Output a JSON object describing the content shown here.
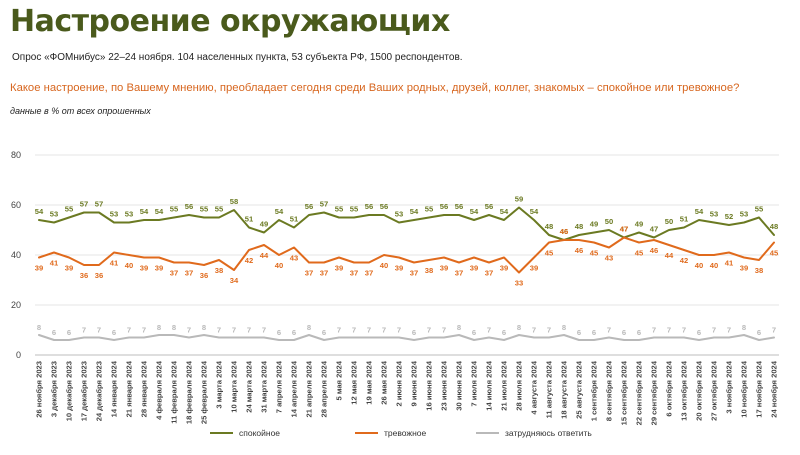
{
  "header": {
    "title": "Настроение окружающих",
    "subtitle": "Опрос «ФОМнибус» 22–24 ноября. 104 населенных пункта, 53 субъекта РФ, 1500 респондентов.",
    "question": "Какое настроение, по Вашему мнению, преобладает сегодня среди Ваших родных, друзей, коллег, знакомых – спокойное или тревожное?",
    "note": "данные в % от всех опрошенных"
  },
  "chart_data": {
    "type": "line",
    "ylim": [
      0,
      80
    ],
    "yticks": [
      0,
      20,
      40,
      60,
      80
    ],
    "grid": true,
    "legend_position": "bottom",
    "categories": [
      "26 ноября 2023",
      "3 декабря 2023",
      "10 декабря 2023",
      "17 декабря 2023",
      "24 декабря 2023",
      "14 января 2024",
      "21 января 2024",
      "28 января 2024",
      "4 февраля 2024",
      "11 февраля 2024",
      "18 февраля 2024",
      "25 февраля 2024",
      "3 марта 2024",
      "10 марта 2024",
      "24 марта 2024",
      "31 марта 2024",
      "7 апреля 2024",
      "14 апреля 2024",
      "21 апреля 2024",
      "28 апреля 2024",
      "5 мая 2024",
      "12 мая 2024",
      "19 мая 2024",
      "26 мая 2024",
      "2 июня 2024",
      "9 июня 2024",
      "16 июня 2024",
      "23 июня 2024",
      "30 июня 2024",
      "7 июля 2024",
      "14 июля 2024",
      "21 июля 2024",
      "28 июля 2024",
      "4 августа 2024",
      "11 августа 2024",
      "18 августа 2024",
      "25 августа 2024",
      "1 сентября 2024",
      "8 сентября 2024",
      "15 сентября 2024",
      "22 сентября 2024",
      "29 сентября 2024",
      "6 октября 2024",
      "13 октября 2024",
      "20 октября 2024",
      "27 октября 2024",
      "3 ноября 2024",
      "10 ноября 2024",
      "17 ноября 2024",
      "24 ноября 2024"
    ],
    "series": [
      {
        "name": "спокойное",
        "color": "#6b7a22",
        "values": [
          54,
          53,
          55,
          57,
          57,
          53,
          53,
          54,
          54,
          55,
          56,
          55,
          55,
          58,
          51,
          49,
          54,
          51,
          56,
          57,
          55,
          55,
          56,
          56,
          53,
          54,
          55,
          56,
          56,
          54,
          56,
          54,
          59,
          54,
          48,
          46,
          48,
          49,
          50,
          47,
          49,
          47,
          50,
          51,
          54,
          53,
          52,
          53,
          55,
          48
        ]
      },
      {
        "name": "тревожное",
        "color": "#e06a1c",
        "values": [
          39,
          41,
          39,
          36,
          36,
          41,
          40,
          39,
          39,
          37,
          37,
          36,
          38,
          34,
          42,
          44,
          40,
          43,
          37,
          37,
          39,
          37,
          37,
          40,
          39,
          37,
          38,
          39,
          37,
          39,
          37,
          39,
          33,
          39,
          45,
          46,
          46,
          45,
          43,
          47,
          45,
          46,
          44,
          42,
          40,
          40,
          41,
          39,
          38,
          45
        ]
      },
      {
        "name": "затрудняюсь ответить",
        "color": "#b9b9b9",
        "values": [
          8,
          6,
          6,
          7,
          7,
          6,
          7,
          7,
          8,
          8,
          7,
          8,
          7,
          7,
          7,
          7,
          6,
          6,
          8,
          6,
          7,
          7,
          7,
          7,
          7,
          6,
          7,
          7,
          8,
          6,
          7,
          6,
          8,
          7,
          7,
          8,
          6,
          6,
          7,
          6,
          6,
          7,
          7,
          7,
          6,
          7,
          7,
          8,
          6,
          7
        ]
      }
    ]
  }
}
